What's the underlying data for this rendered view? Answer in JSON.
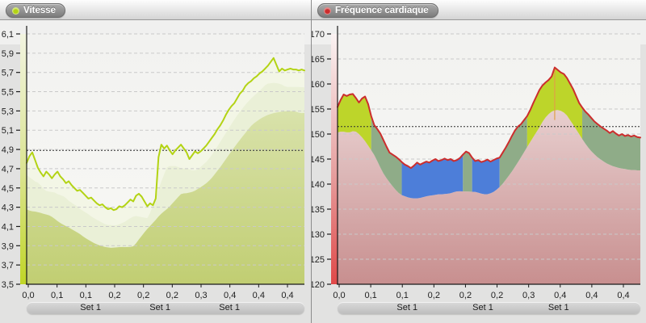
{
  "window_title": "",
  "chart_data": [
    {
      "type": "area",
      "title": "Vitesse",
      "legend_position": "top-left",
      "grid": true,
      "ylim": [
        3.5,
        6.1
      ],
      "y_ticks": [
        "6,1",
        "5,9",
        "5,7",
        "5,5",
        "5,3",
        "5,1",
        "4,9",
        "4,7",
        "4,5",
        "4,3",
        "4,1",
        "3,9",
        "3,7",
        "3,5"
      ],
      "x_ticks": [
        "0,0",
        "0,1",
        "0,1",
        "0,2",
        "0,2",
        "0,2",
        "0,3",
        "0,4",
        "0,4",
        "0,4"
      ],
      "set_labels": [
        "Set 1",
        "Set 1",
        "Set 1"
      ],
      "average_line": 4.89,
      "line_color": "#b3d314",
      "plot_bg": [
        "#f2f2f0",
        "#f8f8f5"
      ],
      "axis_strip_gradient": [
        "#f2f4e0",
        "#dbe492",
        "#c0d626"
      ],
      "envelopes": [
        {
          "smooth": 0,
          "offset": 0,
          "fill": "#f3f6e6"
        },
        {
          "smooth": 3,
          "offset": 0.18,
          "fill": "#eaf0d7"
        },
        {
          "smooth": 8,
          "offset": 0.45,
          "fill_gradient": [
            "#e3ebc4",
            "#c1ce72"
          ]
        }
      ],
      "values": [
        4.76,
        4.83,
        4.87,
        4.79,
        4.71,
        4.66,
        4.62,
        4.67,
        4.64,
        4.6,
        4.64,
        4.67,
        4.62,
        4.59,
        4.55,
        4.57,
        4.53,
        4.5,
        4.47,
        4.48,
        4.45,
        4.42,
        4.39,
        4.4,
        4.37,
        4.34,
        4.32,
        4.33,
        4.3,
        4.28,
        4.29,
        4.27,
        4.28,
        4.31,
        4.3,
        4.32,
        4.35,
        4.38,
        4.36,
        4.42,
        4.44,
        4.41,
        4.36,
        4.31,
        4.34,
        4.32,
        4.39,
        4.82,
        4.95,
        4.91,
        4.94,
        4.89,
        4.85,
        4.89,
        4.92,
        4.95,
        4.91,
        4.87,
        4.8,
        4.84,
        4.88,
        4.86,
        4.88,
        4.91,
        4.94,
        4.98,
        5.02,
        5.06,
        5.11,
        5.15,
        5.2,
        5.26,
        5.31,
        5.35,
        5.38,
        5.43,
        5.48,
        5.51,
        5.56,
        5.59,
        5.61,
        5.64,
        5.66,
        5.69,
        5.71,
        5.74,
        5.77,
        5.81,
        5.85,
        5.78,
        5.71,
        5.74,
        5.72,
        5.73,
        5.74,
        5.73,
        5.73,
        5.72,
        5.73,
        5.72
      ]
    },
    {
      "type": "area",
      "title": "Fréquence cardiaque",
      "legend_position": "top-left",
      "grid": true,
      "ylim": [
        120,
        170
      ],
      "y_ticks": [
        "170",
        "165",
        "160",
        "155",
        "150",
        "145",
        "140",
        "135",
        "130",
        "125",
        "120"
      ],
      "x_ticks": [
        "0,0",
        "0,1",
        "0,1",
        "0,2",
        "0,2",
        "0,2",
        "0,3",
        "0,4",
        "0,4",
        "0,4"
      ],
      "set_labels": [
        "Set 1",
        "Set 1",
        "Set 1"
      ],
      "average_line": 151.5,
      "line_color": "#cc2d2d",
      "plot_bg": [
        "#f2f2f0",
        "#f8f8f5"
      ],
      "axis_strip_gradient": [
        "#fbf3f3",
        "#e6a0a0",
        "#e04848"
      ],
      "envelopes": [
        {
          "smooth": 4,
          "offset": 6.8,
          "fill_gradient": [
            "#f5eaea",
            "#c88f8f"
          ]
        }
      ],
      "zones": [
        {
          "from": 0,
          "to": 0.113,
          "color": "#bdd52a",
          "label": "zone-high"
        },
        {
          "from": 0.113,
          "to": 0.208,
          "color": "#8fac88",
          "label": "zone-mid"
        },
        {
          "from": 0.208,
          "to": 0.413,
          "color": "#4d7ed9",
          "label": "zone-low"
        },
        {
          "from": 0.413,
          "to": 0.443,
          "color": "#8fac88",
          "label": "zone-mid"
        },
        {
          "from": 0.443,
          "to": 0.54,
          "color": "#4d7ed9",
          "label": "zone-low"
        },
        {
          "from": 0.54,
          "to": 0.625,
          "color": "#8fac88",
          "label": "zone-mid"
        },
        {
          "from": 0.625,
          "to": 0.807,
          "color": "#bdd52a",
          "label": "zone-high"
        },
        {
          "from": 0.807,
          "to": 1,
          "color": "#8fac88",
          "label": "zone-mid"
        }
      ],
      "marker": {
        "x": 0.717,
        "color": "#dfa047"
      },
      "values": [
        155.4,
        156.8,
        157.9,
        157.6,
        157.9,
        158.0,
        157.2,
        156.3,
        157.1,
        157.5,
        156.0,
        153.6,
        151.8,
        151.0,
        150.1,
        148.8,
        147.5,
        146.3,
        145.9,
        145.5,
        145.0,
        144.4,
        143.9,
        143.6,
        143.2,
        143.7,
        144.3,
        143.9,
        144.2,
        144.5,
        144.3,
        144.7,
        145.0,
        144.6,
        144.8,
        145.1,
        144.8,
        145.0,
        144.6,
        144.8,
        145.2,
        145.9,
        146.5,
        146.2,
        145.3,
        144.6,
        144.8,
        144.4,
        144.6,
        144.9,
        144.5,
        144.8,
        145.1,
        145.3,
        146.3,
        147.3,
        148.4,
        149.6,
        150.7,
        151.5,
        152.0,
        152.8,
        153.6,
        154.8,
        156.2,
        157.5,
        158.8,
        159.7,
        160.3,
        160.8,
        161.5,
        163.3,
        162.8,
        162.3,
        162.0,
        161.2,
        160.1,
        159.0,
        157.6,
        156.2,
        155.3,
        154.5,
        153.9,
        153.2,
        152.5,
        152.0,
        151.5,
        151.1,
        150.7,
        150.2,
        150.6,
        150.1,
        149.7,
        150.0,
        149.6,
        149.8,
        149.5,
        149.7,
        149.4,
        149.3
      ]
    }
  ]
}
